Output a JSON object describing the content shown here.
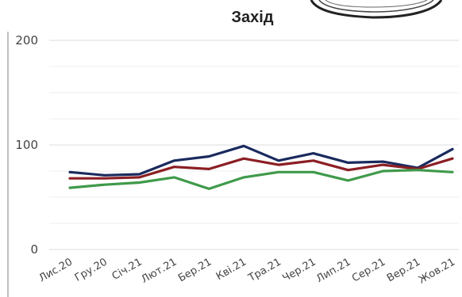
{
  "chart_data": {
    "type": "line",
    "title": "Захід",
    "xlabel": "",
    "ylabel": "",
    "ylim": [
      0,
      200
    ],
    "yticks": [
      "0",
      "100",
      "200"
    ],
    "grid": true,
    "categories": [
      "Лис.20",
      "Гру.20",
      "Січ.21",
      "Лют.21",
      "Бер.21",
      "Кві.21",
      "Тра.21",
      "Чер.21",
      "Лип.21",
      "Сер.21",
      "Вер.21",
      "Жов.21"
    ],
    "series": [
      {
        "color": "#1a2a5e",
        "values": [
          74,
          71,
          72,
          85,
          89,
          99,
          85,
          92,
          83,
          84,
          78,
          96
        ]
      },
      {
        "color": "#8b1f24",
        "values": [
          68,
          68,
          69,
          79,
          77,
          87,
          81,
          85,
          76,
          81,
          77,
          87
        ]
      },
      {
        "color": "#3f9a4a",
        "values": [
          59,
          62,
          64,
          69,
          58,
          69,
          74,
          74,
          66,
          75,
          76,
          74
        ]
      }
    ]
  }
}
